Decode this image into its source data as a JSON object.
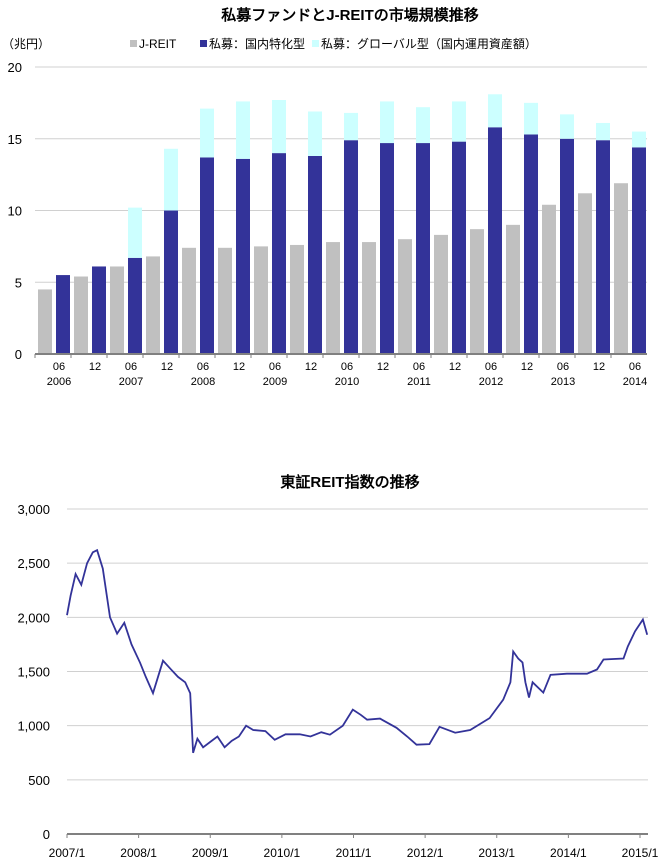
{
  "chart_data": [
    {
      "type": "bar",
      "title": "私募ファンドとJ-REITの市場規模推移",
      "ylabel": "（兆円）",
      "ylim": [
        0,
        20
      ],
      "yticks": [
        "0",
        "5",
        "10",
        "15",
        "20"
      ],
      "months": [
        "06",
        "12",
        "06",
        "12",
        "06",
        "12",
        "06",
        "12",
        "06",
        "12",
        "06",
        "12",
        "06",
        "12",
        "06",
        "12",
        "06"
      ],
      "years": [
        "2006",
        "2007",
        "2008",
        "2009",
        "2010",
        "2011",
        "2012",
        "2013",
        "2014"
      ],
      "legend": [
        "J-REIT",
        "私募：国内特化型",
        "私募：グローバル型（国内運用資産額）"
      ],
      "legend_position": "top",
      "colors": [
        "#c0c0c0",
        "#333399",
        "#ccffff"
      ],
      "series": [
        {
          "name": "J-REIT",
          "values": [
            4.5,
            5.4,
            6.1,
            6.8,
            7.4,
            7.4,
            7.5,
            7.6,
            7.8,
            7.8,
            8.0,
            8.3,
            8.7,
            9.0,
            10.4,
            11.2,
            11.9
          ]
        },
        {
          "name": "私募：国内特化型",
          "values": [
            5.5,
            6.1,
            6.7,
            10.0,
            13.7,
            13.6,
            14.0,
            13.8,
            14.9,
            14.7,
            14.7,
            14.8,
            15.8,
            15.3,
            15.0,
            14.9,
            14.4
          ]
        },
        {
          "name": "私募：グローバル型（国内運用資産額）",
          "values": [
            0,
            0,
            3.5,
            4.3,
            3.4,
            4.0,
            3.7,
            3.1,
            1.9,
            2.9,
            2.5,
            2.8,
            2.3,
            2.2,
            1.7,
            1.2,
            1.1
          ]
        }
      ]
    },
    {
      "type": "line",
      "title": "東証REIT指数の推移",
      "ylim": [
        0,
        3000
      ],
      "yticks": [
        "0",
        "500",
        "1,000",
        "1,500",
        "2,000",
        "2,500",
        "3,000"
      ],
      "xticks": [
        "2007/1",
        "2008/1",
        "2009/1",
        "2010/1",
        "2011/1",
        "2012/1",
        "2013/1",
        "2014/1",
        "2015/1"
      ],
      "color": "#333399",
      "x": [
        2007.0,
        2007.05,
        2007.12,
        2007.2,
        2007.28,
        2007.36,
        2007.42,
        2007.5,
        2007.6,
        2007.7,
        2007.8,
        2007.9,
        2008.02,
        2008.1,
        2008.2,
        2008.34,
        2008.45,
        2008.55,
        2008.65,
        2008.72,
        2008.76,
        2008.82,
        2008.9,
        2009.0,
        2009.1,
        2009.2,
        2009.3,
        2009.4,
        2009.5,
        2009.6,
        2009.77,
        2009.9,
        2010.05,
        2010.25,
        2010.4,
        2010.55,
        2010.67,
        2010.85,
        2010.99,
        2011.1,
        2011.19,
        2011.37,
        2011.6,
        2011.75,
        2011.88,
        2012.06,
        2012.2,
        2012.42,
        2012.63,
        2012.9,
        2013.09,
        2013.19,
        2013.23,
        2013.3,
        2013.36,
        2013.4,
        2013.45,
        2013.5,
        2013.65,
        2013.75,
        2013.98,
        2014.26,
        2014.4,
        2014.49,
        2014.77,
        2014.83,
        2014.93,
        2015.04,
        2015.1
      ],
      "y": [
        2020,
        2200,
        2400,
        2300,
        2500,
        2600,
        2620,
        2450,
        2000,
        1850,
        1950,
        1750,
        1580,
        1450,
        1300,
        1600,
        1520,
        1450,
        1400,
        1300,
        750,
        880,
        800,
        850,
        900,
        800,
        860,
        900,
        1000,
        960,
        950,
        870,
        920,
        920,
        900,
        940,
        917,
        1000,
        1148,
        1100,
        1055,
        1065,
        980,
        900,
        824,
        830,
        990,
        935,
        960,
        1070,
        1240,
        1400,
        1685,
        1620,
        1583,
        1400,
        1260,
        1400,
        1305,
        1470,
        1480,
        1480,
        1518,
        1611,
        1620,
        1731,
        1870,
        1980,
        1840
      ]
    }
  ]
}
